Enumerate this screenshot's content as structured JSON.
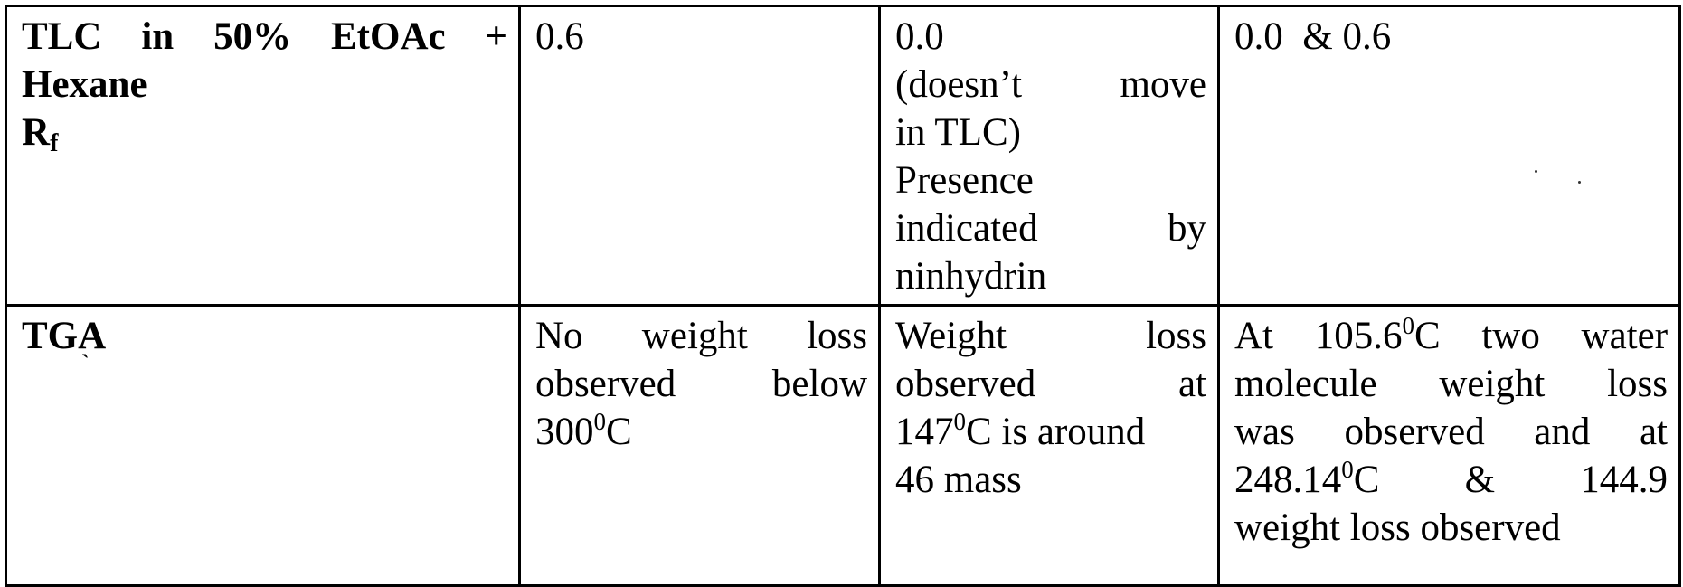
{
  "table": {
    "rows": [
      {
        "label_lines": [
          "TLC in 50% EtOAc +",
          "Hexane",
          "R",
          "f"
        ],
        "col2": "0.6",
        "col3_lines": [
          "0.0",
          "(doesn’t move",
          "in TLC)",
          "Presence",
          "indicated by",
          "ninhydrin"
        ],
        "col4": "0.0  & 0.6"
      },
      {
        "label": "TGA",
        "label_mark": "`",
        "col2": {
          "line1": "No weight loss",
          "line2": "observed below",
          "line3_pre": "300",
          "line3_sup": "0",
          "line3_post": "C"
        },
        "col3": {
          "line1": "Weight loss",
          "line2": "observed at",
          "line3_pre": "147",
          "line3_sup": "0",
          "line3_post": "C is around",
          "line4": "46 mass"
        },
        "col4": {
          "line1_pre": "At 105.6",
          "line1_sup": "0",
          "line1_post": "C two water",
          "line2": "molecule weight loss",
          "line3": "was observed and at",
          "line4_pre": "248.14",
          "line4_sup": "0",
          "line4_post": "C  &  144.9",
          "line5": "weight loss observed"
        }
      }
    ]
  }
}
